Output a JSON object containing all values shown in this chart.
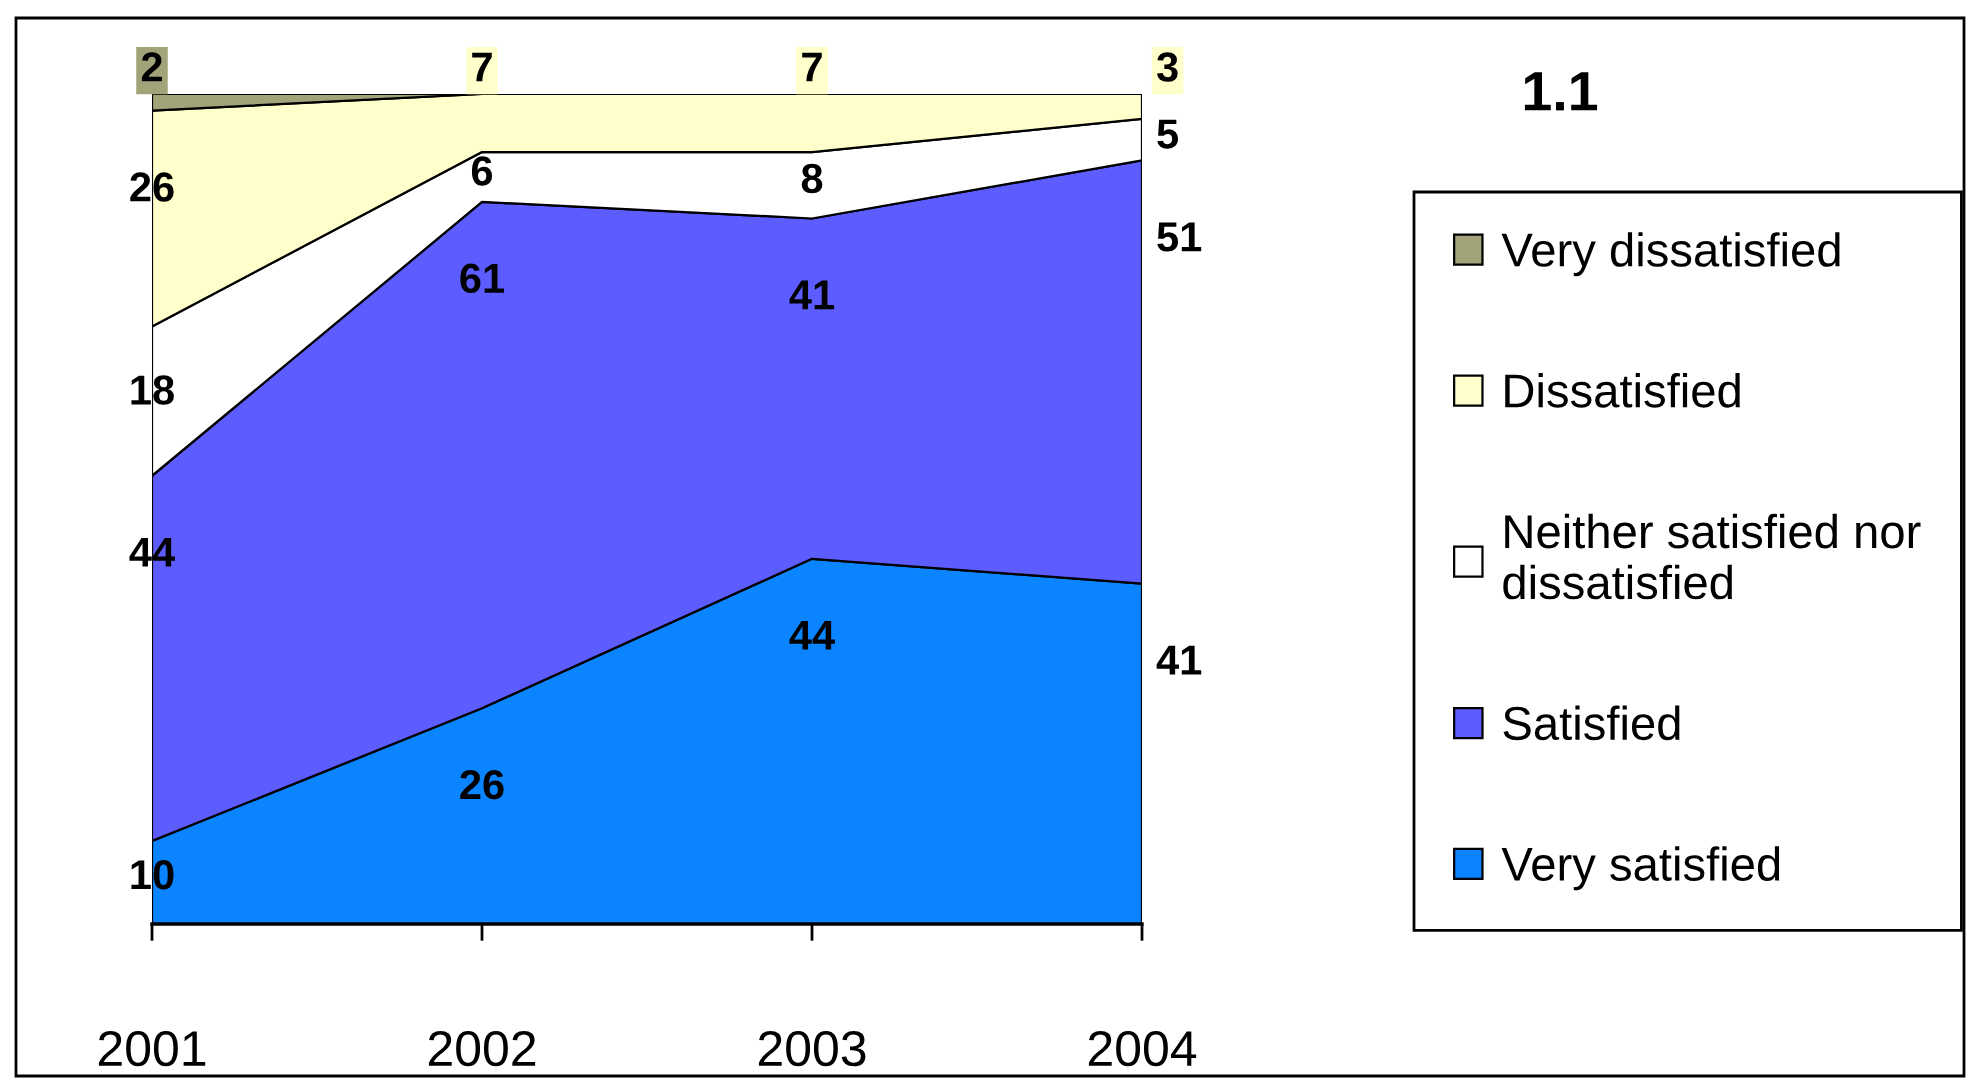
{
  "chart_data": {
    "type": "area",
    "title": "1.1",
    "stacked": true,
    "legend": "right",
    "tick_labels": "x",
    "categories": [
      "2001",
      "2002",
      "2003",
      "2004"
    ],
    "series": [
      {
        "name": "Very satisfied",
        "color": "#0a84ff",
        "values": [
          10,
          26,
          44,
          41
        ],
        "value_labels": [
          "10",
          "26",
          "44",
          "41"
        ]
      },
      {
        "name": "Satisfied",
        "color": "#5c5cff",
        "values": [
          44,
          61,
          41,
          51
        ],
        "value_labels": [
          "44",
          "61",
          "41",
          "51"
        ]
      },
      {
        "name": "Neither satisfied nor dissatisfied",
        "color": "#ffffff",
        "values": [
          18,
          6,
          8,
          5
        ],
        "value_labels": [
          "18",
          "6",
          "8",
          "5"
        ]
      },
      {
        "name": "Dissatisfied",
        "color": "#ffffcc",
        "values": [
          26,
          7,
          7,
          3
        ],
        "value_labels": [
          "26",
          "7",
          "7",
          "3"
        ]
      },
      {
        "name": "Very dissatisfied",
        "color": "#a3a37a",
        "values": [
          2,
          0,
          0,
          0
        ],
        "value_labels": [
          "2",
          null,
          null,
          null
        ]
      }
    ]
  }
}
